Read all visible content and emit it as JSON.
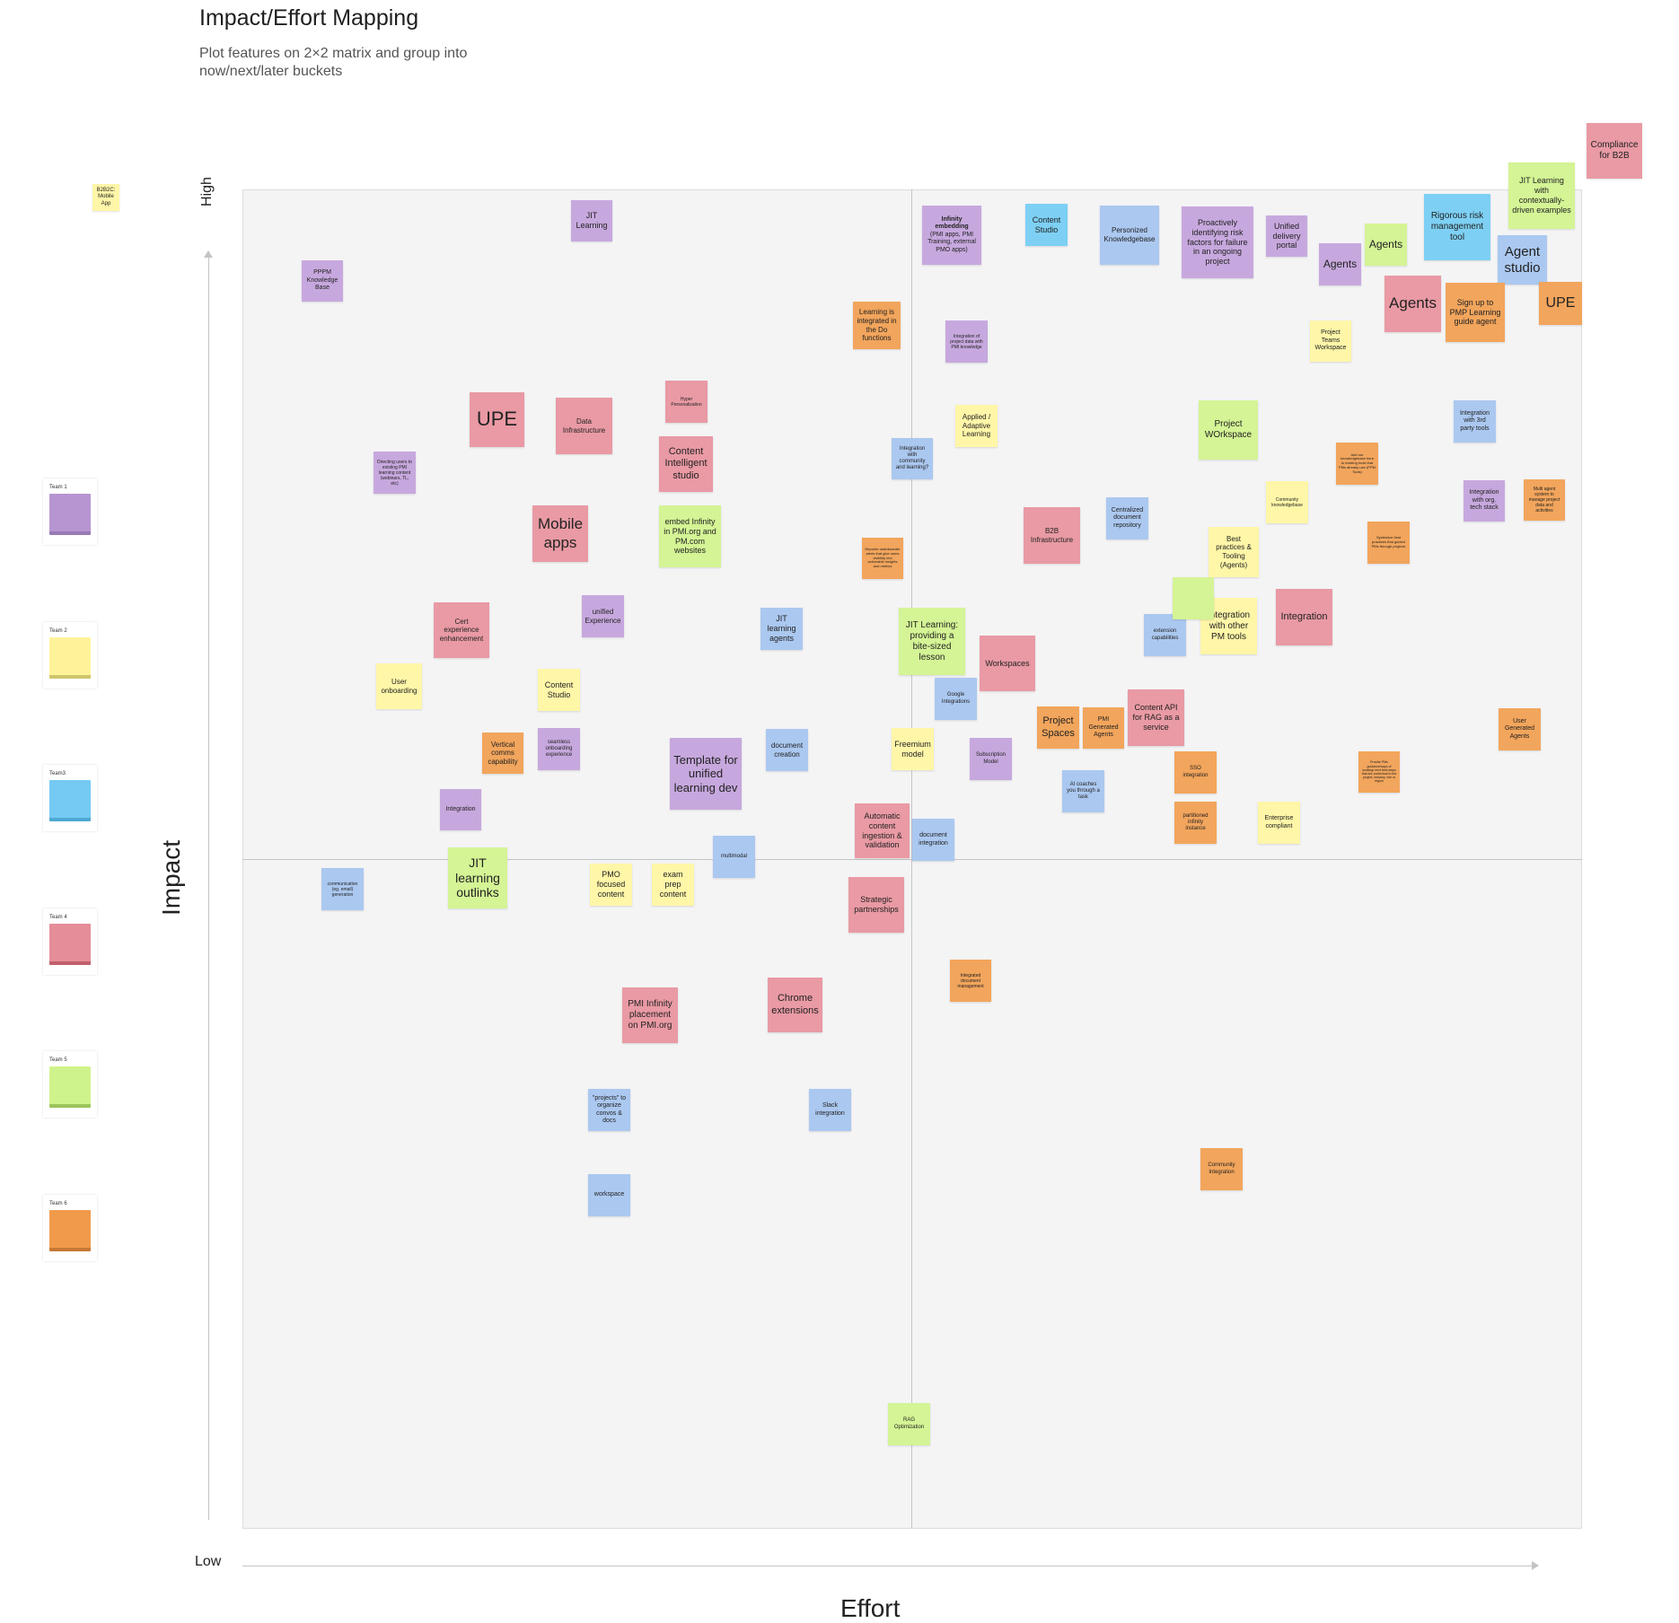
{
  "header": {
    "title": "Impact/Effort Mapping",
    "subtitle": "Plot features on 2×2 matrix and group into now/next/later buckets"
  },
  "axes": {
    "y_high": "High",
    "y_low": "Low",
    "y_label": "Impact",
    "x_label": "Effort"
  },
  "legend": [
    {
      "label": "Team 1"
    },
    {
      "label": "Team 2"
    },
    {
      "label": "Team3"
    },
    {
      "label": "Team 4"
    },
    {
      "label": "Team 5"
    },
    {
      "label": "Team 6"
    }
  ],
  "stray_notes": {
    "b2b2c": "B2B2C: Mobile App",
    "compliance": "Compliance for B2B",
    "jit_contextual": "JIT Learning with contextually-driven examples"
  },
  "notes": {
    "n01": "JIT Learning",
    "n02": "PPPM Knowledge Base",
    "n03": "UPE",
    "n04": "Data Infrastructure",
    "n05": "Hyper Personalization",
    "n06": "Content Intelligent studio",
    "n07": "Directing users to existing PMI learning content (webinars, TL, etc)",
    "n08": "Mobile apps",
    "n09": "embed Infinity in PMI.org and PM.com websites",
    "n10": "unified Experience",
    "n11": "Cert experience enhancement",
    "n12": "JIT learning agents",
    "n13": "User onboarding",
    "n14": "Content Studio",
    "n15": "Vertical comms capability",
    "n16": "seamless onboarding experience",
    "n17": "Template for unified learning dev",
    "n18": "document creation",
    "n19": "Integration",
    "n20": "multimodal",
    "n21": "communication (eg. email) generation",
    "n22": "JIT learning outlinks",
    "n23": "PMO focused content",
    "n24": "exam prep content",
    "n25": "Learning is integrated in the Do functions",
    "n26": "Integration with community and learning?",
    "n27": "Reporter dashboarder alerts that give users visibility into actionable insights and metrics",
    "n28": "Automatic content ingestion & validation",
    "n29": "Strategic partnerships",
    "n30": "PMI Infinity placement on PMI.org",
    "n31": "Chrome extensions",
    "n32": "\"projects\" to organize convos & docs",
    "n33": "workspace",
    "n34": "Slack integration",
    "n35": "Infinity embedding",
    "n35b": "(PMI apps, PMI Training, external PMO apps)",
    "n36": "Content Studio",
    "n37": "Personized Knowledgebase",
    "n38": "Proactively identifying risk factors for failure in an ongoing project",
    "n39": "Unified delivery portal",
    "n40": "Agents",
    "n41": "Agents",
    "n42": "Rigorous risk management tool",
    "n43": "Agent studio",
    "n44": "Agents",
    "n45": "Sign up to PMP Learning guide agent",
    "n46": "UPE",
    "n47": "Integration of project data with PMI knowledge",
    "n48": "Project Teams Workspace",
    "n49": "Applied / Adaptive Learning",
    "n50": "Project WOrkspace",
    "n51": "Integration with 3rd party tools",
    "n52": "Add our knowledgebase here to existing tools that PMs already use (PPM Tools)",
    "n53": "Community knowledgebase",
    "n54": "Integration with org. tech stack",
    "n55": "Multi agent system to manage project data and activities",
    "n56": "B2B Infrastructure",
    "n57": "Centralized document repository",
    "n58": "Best practices & Tooling (Agents)",
    "n59": "Systemize best practices that guided PMs through projects",
    "n60": "JIT Learning: providing a bite-sized lesson",
    "n61": "Workspaces",
    "n62": "extension capabilities",
    "n63": "Integration with other PM tools",
    "n64": "Integration",
    "n65": "Google Integrations",
    "n66": "Project Spaces",
    "n67": "PMI Generated Agents",
    "n68": "Content API for RAG as a service",
    "n69": "User Generated Agents",
    "n70": "Freemium model",
    "n71": "Subscription Model",
    "n72": "AI coaches you through a task",
    "n73": "SSO integration",
    "n74": "Provide PMs guidance/ways of working/ next best steps that are contextual to the project, industry, role or region",
    "n75": "partitioned infinity instance",
    "n76": "Enterprise compliant",
    "n77": "document integration",
    "n78": "Integrated document management",
    "n79": "Community Integration",
    "n80": "RAG Optimization",
    "n81": ""
  },
  "colors": {
    "purple": "#c7a8de",
    "yellow": "#fff6a8",
    "blue": "#abc8f0",
    "cyan": "#7dd0f4",
    "red": "#e99aa4",
    "green": "#d4f495",
    "orange": "#f2a55c"
  }
}
